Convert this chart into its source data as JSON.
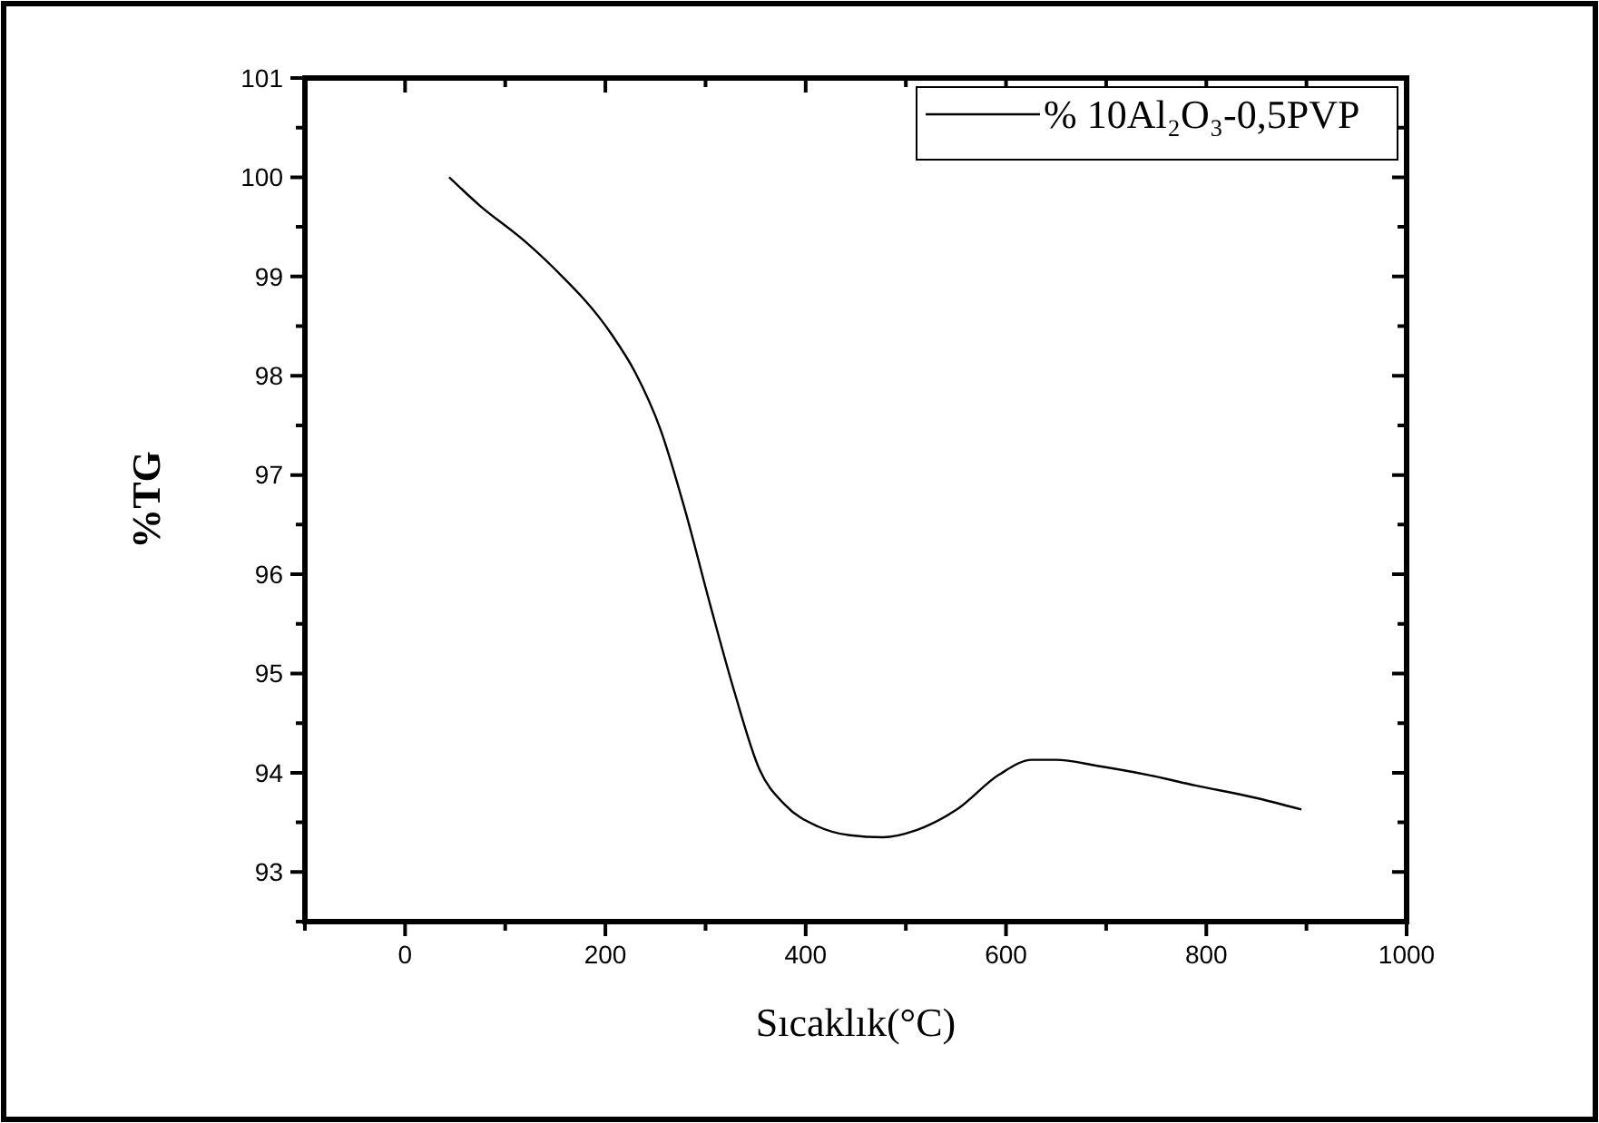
{
  "chart_data": {
    "type": "line",
    "xlabel": "Sıcaklık(°C)",
    "ylabel": "%TG",
    "xlim": [
      -100,
      1000
    ],
    "ylim": [
      92.5,
      101
    ],
    "xticks": [
      {
        "value": -100,
        "label": null
      },
      0,
      {
        "value": 100,
        "label": null
      },
      200,
      {
        "value": 300,
        "label": null
      },
      400,
      {
        "value": 500,
        "label": null
      },
      600,
      {
        "value": 700,
        "label": null
      },
      800,
      {
        "value": 900,
        "label": null
      },
      1000
    ],
    "yticks": [
      {
        "value": 92.5,
        "label": null
      },
      93,
      {
        "value": 93.5,
        "label": null
      },
      94,
      {
        "value": 94.5,
        "label": null
      },
      95,
      {
        "value": 95.5,
        "label": null
      },
      96,
      {
        "value": 96.5,
        "label": null
      },
      97,
      {
        "value": 97.5,
        "label": null
      },
      98,
      {
        "value": 98.5,
        "label": null
      },
      99,
      {
        "value": 99.5,
        "label": null
      },
      100,
      {
        "value": 100.5,
        "label": null
      },
      101
    ],
    "legend": "top right",
    "grid": false,
    "marker": "none",
    "line_style": "solid",
    "series": [
      {
        "name": "% 10Al₂O₃-0,5PVP",
        "color": "#000000",
        "x": [
          44,
          74,
          119,
          148,
          206,
          230,
          255,
          280,
          305,
          329,
          354,
          379,
          412,
          444,
          477,
          510,
          551,
          593,
          626,
          650,
          691,
          741,
          790,
          848,
          895
        ],
        "values": [
          100.0,
          99.72,
          99.36,
          99.09,
          98.42,
          98.03,
          97.46,
          96.63,
          95.68,
          94.81,
          94.03,
          93.68,
          93.46,
          93.37,
          93.35,
          93.42,
          93.63,
          93.98,
          94.13,
          94.13,
          94.07,
          93.98,
          93.87,
          93.75,
          93.63
        ]
      }
    ]
  }
}
